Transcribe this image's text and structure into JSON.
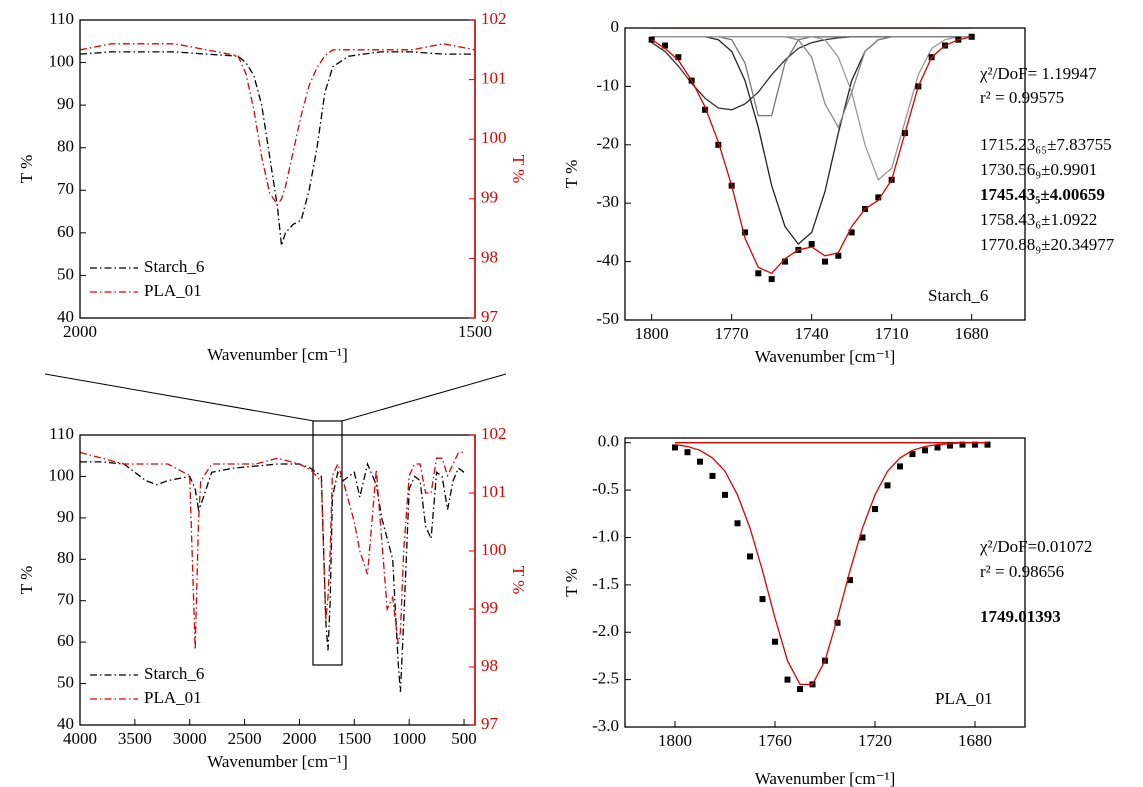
{
  "chart_data": [
    {
      "type": "line",
      "x_label": "Wavenumber [cm⁻¹]",
      "y_label": "T %",
      "y2_label": "T %",
      "xlim": [
        2000,
        1500
      ],
      "xticks": [
        2000,
        1500
      ],
      "ylim": [
        40,
        110
      ],
      "yticks": [
        40,
        50,
        60,
        70,
        80,
        90,
        100,
        110
      ],
      "y2lim": [
        97,
        102
      ],
      "y2ticks": [
        97,
        98,
        99,
        100,
        101,
        102
      ],
      "legend": "lower left",
      "x": [
        2000,
        1960,
        1920,
        1880,
        1840,
        1800,
        1790,
        1780,
        1770,
        1760,
        1750,
        1745,
        1740,
        1730,
        1720,
        1710,
        1700,
        1690,
        1680,
        1660,
        1620,
        1580,
        1540,
        1500
      ],
      "series": [
        {
          "name": "Starch_6",
          "color": "#000000",
          "line_style": "dashdot",
          "values": [
            102,
            102.5,
            102.5,
            102.5,
            102,
            101.5,
            100,
            97,
            90,
            78,
            66,
            57,
            60,
            62,
            63,
            70,
            80,
            93,
            99,
            101.5,
            102.5,
            102.5,
            102,
            102
          ]
        },
        {
          "name": "PLA_01",
          "color": "#e00000",
          "line_style": "dashdot",
          "axis": "y2",
          "values": [
            101.5,
            101.6,
            101.6,
            101.6,
            101.5,
            101.4,
            101.1,
            100.5,
            99.7,
            99.1,
            98.9,
            99,
            99.2,
            99.8,
            100.4,
            100.9,
            101.2,
            101.4,
            101.5,
            101.5,
            101.5,
            101.5,
            101.6,
            101.5
          ]
        }
      ]
    },
    {
      "type": "line",
      "x_label": "Wavenumber [cm⁻¹]",
      "y_label": "T %",
      "y2_label": "T %",
      "xlim": [
        4000,
        400
      ],
      "xticks": [
        4000,
        3500,
        3000,
        2500,
        2000,
        1500,
        1000,
        500
      ],
      "ylim": [
        40,
        110
      ],
      "yticks": [
        40,
        50,
        60,
        70,
        80,
        90,
        100,
        110
      ],
      "y2lim": [
        97,
        102
      ],
      "y2ticks": [
        97,
        98,
        99,
        100,
        101,
        102
      ],
      "legend": "lower left",
      "x": [
        4000,
        3800,
        3600,
        3400,
        3300,
        3200,
        3000,
        2950,
        2920,
        2900,
        2800,
        2600,
        2400,
        2200,
        2000,
        1900,
        1800,
        1760,
        1740,
        1720,
        1700,
        1650,
        1600,
        1500,
        1450,
        1380,
        1300,
        1250,
        1200,
        1150,
        1100,
        1080,
        1050,
        1000,
        950,
        900,
        850,
        800,
        750,
        700,
        650,
        600,
        550,
        500
      ],
      "series": [
        {
          "name": "Starch_6",
          "color": "#000000",
          "line_style": "dashdot",
          "values": [
            103.5,
            103.5,
            103,
            99,
            98,
            99,
            100,
            97,
            92,
            93,
            101,
            102,
            102.5,
            103,
            103,
            102,
            100,
            65,
            58,
            70,
            95,
            101,
            99,
            101,
            95,
            103,
            98,
            90,
            85,
            80,
            55,
            48,
            65,
            97,
            100,
            99,
            88,
            85,
            101,
            100,
            92,
            99,
            102,
            101
          ]
        },
        {
          "name": "PLA_01",
          "color": "#e00000",
          "line_style": "dashdot",
          "axis": "y2",
          "values": [
            101.7,
            101.6,
            101.5,
            101.5,
            101.5,
            101.5,
            101.3,
            98.3,
            100.5,
            101.2,
            101.5,
            101.5,
            101.5,
            101.6,
            101.5,
            101.4,
            101.2,
            98.8,
            99.2,
            100,
            101.3,
            101.5,
            101.2,
            100.5,
            100,
            99.6,
            101.4,
            100.2,
            99,
            99.2,
            98.4,
            98.6,
            100,
            101.3,
            101.5,
            101.5,
            101,
            101,
            101.6,
            101.6,
            101.3,
            101.5,
            101.7,
            101.7
          ]
        }
      ]
    },
    {
      "type": "line",
      "x_label": "Wavenumber [cm⁻¹]",
      "y_label": "T %",
      "xlim": [
        1810,
        1660
      ],
      "xticks": [
        1800,
        1770,
        1740,
        1710,
        1680
      ],
      "ylim": [
        -50,
        0
      ],
      "yticks": [
        -50,
        -40,
        -30,
        -20,
        -10,
        0
      ],
      "x": [
        1800,
        1795,
        1790,
        1785,
        1780,
        1775,
        1770,
        1765,
        1760,
        1755,
        1750,
        1745,
        1740,
        1735,
        1730,
        1725,
        1720,
        1715,
        1710,
        1705,
        1700,
        1695,
        1690,
        1685,
        1680
      ],
      "series": [
        {
          "color": "#e00000",
          "line_style": "solid",
          "values": [
            0,
            0,
            0,
            0,
            0,
            0,
            0,
            0,
            0,
            0,
            0,
            0,
            0,
            0,
            0,
            0,
            0,
            0,
            0,
            0,
            0,
            0,
            0,
            0,
            0
          ]
        },
        {
          "color": "#333333",
          "line_style": "solid",
          "values": [
            -2.5,
            -4,
            -6.5,
            -9.5,
            -12,
            -13.7,
            -14,
            -13,
            -11,
            -8,
            -5.5,
            -3.5,
            -2.5,
            -2,
            -1.7,
            -1.5,
            -1.5,
            -1.5,
            -1.5,
            -1.5,
            -1.5,
            -1.5,
            -1.5,
            -1.5,
            -1.5
          ]
        },
        {
          "color": "#777777",
          "line_style": "solid",
          "values": [
            -1.5,
            -1.5,
            -1.5,
            -1.5,
            -1.5,
            -1.5,
            -2,
            -6,
            -15,
            -15,
            -6,
            -2,
            -1.5,
            -1.5,
            -1.5,
            -1.5,
            -1.5,
            -1.5,
            -1.5,
            -1.5,
            -1.5,
            -1.5,
            -1.5,
            -1.5,
            -1.5
          ]
        },
        {
          "color": "#222222",
          "line_style": "solid",
          "values": [
            -1.5,
            -1.5,
            -1.5,
            -1.5,
            -1.5,
            -2,
            -4,
            -9,
            -17,
            -27,
            -34,
            -37,
            -35,
            -28,
            -18,
            -9,
            -4,
            -2,
            -1.5,
            -1.5,
            -1.5,
            -1.5,
            -1.5,
            -1.5,
            -1.5
          ]
        },
        {
          "color": "#888888",
          "line_style": "solid",
          "values": [
            -1.5,
            -1.5,
            -1.5,
            -1.5,
            -1.5,
            -1.5,
            -1.5,
            -1.5,
            -1.5,
            -1.5,
            -1.5,
            -2,
            -5,
            -13,
            -17,
            -11,
            -4,
            -2,
            -1.5,
            -1.5,
            -1.5,
            -1.5,
            -1.5,
            -1.5,
            -1.5
          ]
        },
        {
          "color": "#999999",
          "line_style": "solid",
          "values": [
            -1.5,
            -1.5,
            -1.5,
            -1.5,
            -1.5,
            -1.5,
            -1.5,
            -1.5,
            -1.5,
            -1.5,
            -1.5,
            -1.5,
            -1.5,
            -2,
            -5,
            -11,
            -20,
            -26,
            -24,
            -16,
            -8,
            -3.5,
            -2,
            -1.5,
            -1.5
          ]
        },
        {
          "color": "#000000",
          "line_style": "points",
          "values": [
            -2,
            -3,
            -5,
            -9,
            -14,
            -20,
            -27,
            -35,
            -42,
            -43,
            -40,
            -38,
            -37,
            -40,
            -39,
            -35,
            -31,
            -29,
            -26,
            -18,
            -10,
            -5,
            -3,
            -2,
            -1.5
          ]
        },
        {
          "color": "#e00000",
          "line_style": "solid",
          "values": [
            -2,
            -3.5,
            -5.5,
            -9,
            -13.5,
            -19.5,
            -27,
            -36,
            -41,
            -42,
            -39.5,
            -38,
            -37.5,
            -39,
            -38.5,
            -34,
            -31,
            -29.5,
            -26,
            -18,
            -10,
            -5,
            -3,
            -2,
            -1.5
          ]
        }
      ],
      "annotations": [
        {
          "text": "χ²/DoF= 1.19947"
        },
        {
          "text": "r² =  0.99575"
        },
        {
          "text": "1715.23₆₅±7.83755"
        },
        {
          "text": "1730.56₉±0.9901"
        },
        {
          "text": "1745.43₅±4.00659",
          "bold": true
        },
        {
          "text": "1758.43₆±1.0922"
        },
        {
          "text": "1770.88₉±20.34977"
        },
        {
          "text": "Starch_6"
        }
      ]
    },
    {
      "type": "line",
      "x_label": "Wavenumber [cm⁻¹]",
      "y_label": "T %",
      "xlim": [
        1820,
        1660
      ],
      "xticks": [
        1800,
        1760,
        1720,
        1680
      ],
      "ylim": [
        -3,
        0.05
      ],
      "yticks": [
        {
          "value": -3,
          "label": "-3.0"
        },
        -2.5,
        {
          "value": -2,
          "label": "-2.0"
        },
        -1.5,
        {
          "value": -1,
          "label": "-1.0"
        },
        -0.5,
        {
          "value": 0,
          "label": "0.0"
        }
      ],
      "x": [
        1800,
        1795,
        1790,
        1785,
        1780,
        1775,
        1770,
        1765,
        1760,
        1755,
        1750,
        1745,
        1740,
        1735,
        1730,
        1725,
        1720,
        1715,
        1710,
        1705,
        1700,
        1695,
        1690,
        1685,
        1680,
        1675
      ],
      "series": [
        {
          "color": "#e00000",
          "line_style": "solid",
          "values": [
            0,
            0,
            0,
            0,
            0,
            0,
            0,
            0,
            0,
            0,
            0,
            0,
            0,
            0,
            0,
            0,
            0,
            0,
            0,
            0,
            0,
            0,
            0,
            0,
            0,
            0
          ]
        },
        {
          "color": "#000000",
          "line_style": "points",
          "values": [
            -0.05,
            -0.1,
            -0.2,
            -0.35,
            -0.55,
            -0.85,
            -1.2,
            -1.65,
            -2.1,
            -2.5,
            -2.6,
            -2.55,
            -2.3,
            -1.9,
            -1.45,
            -1,
            -0.7,
            -0.45,
            -0.25,
            -0.12,
            -0.08,
            -0.05,
            -0.03,
            -0.02,
            -0.02,
            -0.02
          ]
        },
        {
          "color": "#e00000",
          "line_style": "solid",
          "values": [
            -0.02,
            -0.04,
            -0.08,
            -0.16,
            -0.3,
            -0.55,
            -0.9,
            -1.35,
            -1.85,
            -2.3,
            -2.55,
            -2.55,
            -2.3,
            -1.85,
            -1.35,
            -0.9,
            -0.55,
            -0.3,
            -0.16,
            -0.08,
            -0.04,
            -0.02,
            -0.01,
            0,
            0,
            0
          ]
        }
      ],
      "annotations": [
        {
          "text": "χ²/DoF=0.01072"
        },
        {
          "text": "r² =  0.98656"
        },
        {
          "text": "1749.01393",
          "bold": true
        },
        {
          "text": "PLA_01"
        }
      ]
    }
  ]
}
